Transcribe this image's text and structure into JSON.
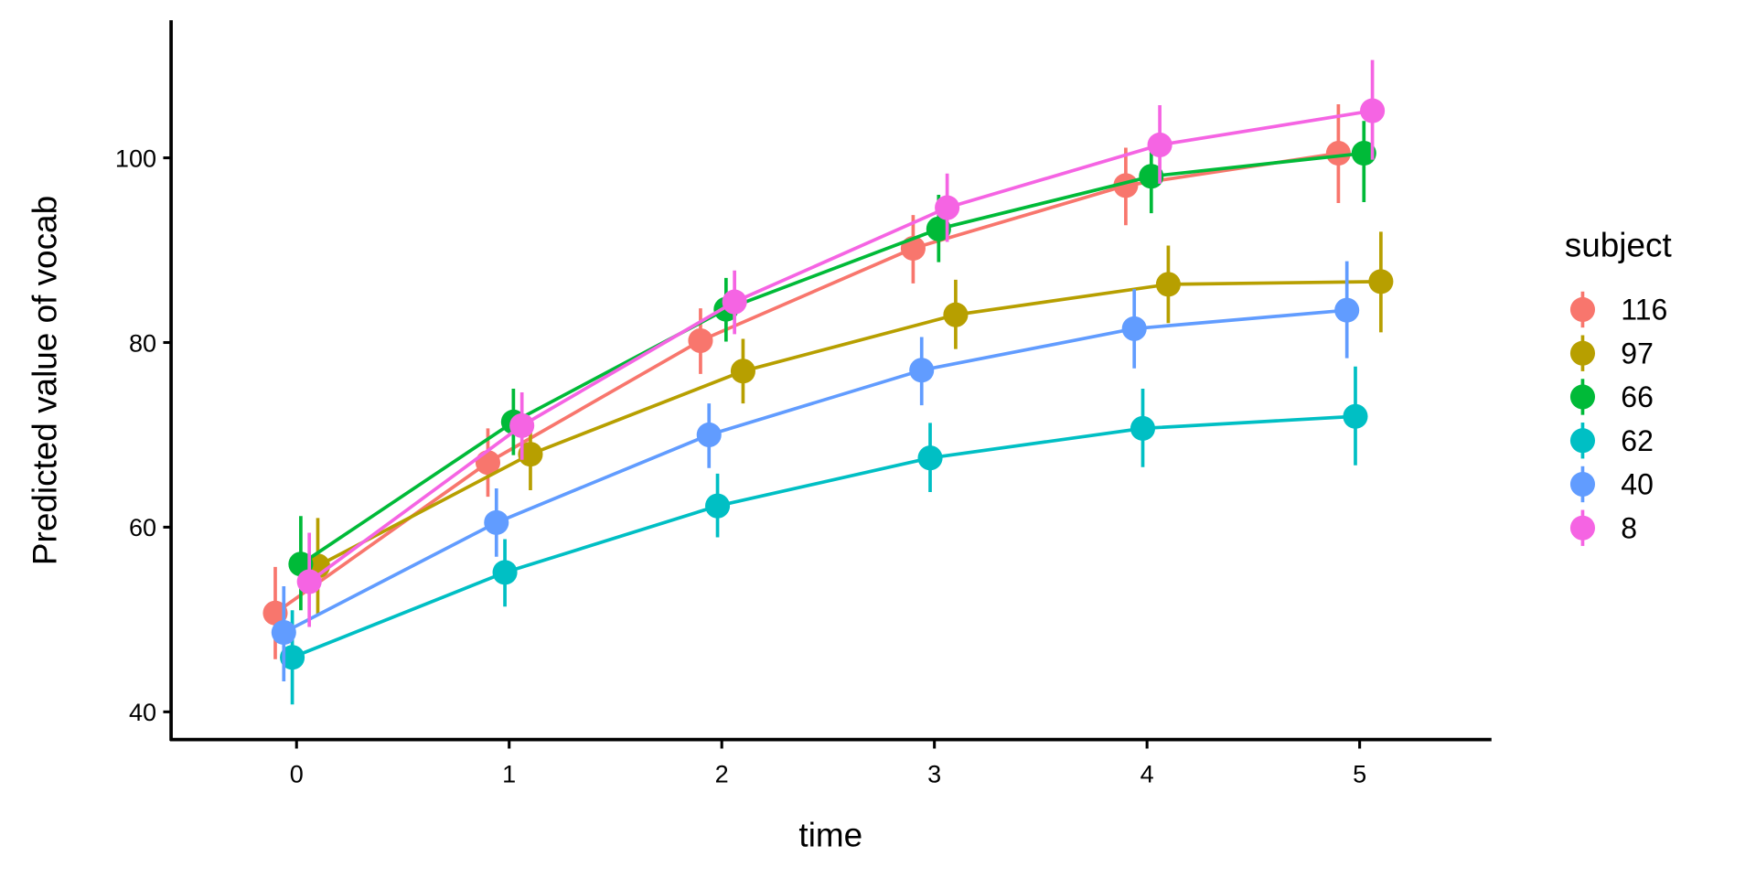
{
  "chart_data": {
    "type": "line",
    "title": "",
    "xlabel": "time",
    "ylabel": "Predicted value of vocab",
    "xlim": [
      -0.59,
      5.62
    ],
    "ylim": [
      37.0,
      114.9
    ],
    "x": [
      0,
      1,
      2,
      3,
      4,
      5
    ],
    "x_ticks": [
      "0",
      "1",
      "2",
      "3",
      "4",
      "5"
    ],
    "y_ticks": [
      40,
      60,
      80,
      100
    ],
    "y_tick_labels": [
      "40",
      "60",
      "80",
      "100"
    ],
    "grid": false,
    "legend": {
      "title": "subject",
      "placement": "right"
    },
    "series": [
      {
        "name": "116",
        "color": "#F8766D",
        "dodge": -0.1,
        "values": [
          50.7,
          67.0,
          80.2,
          90.2,
          97.0,
          100.5
        ],
        "lower": [
          45.7,
          63.3,
          76.6,
          86.4,
          92.7,
          95.1
        ],
        "upper": [
          55.7,
          70.7,
          83.7,
          93.8,
          101.1,
          105.8
        ]
      },
      {
        "name": "97",
        "color": "#B79F00",
        "dodge": 0.1,
        "values": [
          55.8,
          67.9,
          76.9,
          83.0,
          86.3,
          86.6
        ],
        "lower": [
          50.6,
          64.0,
          73.4,
          79.3,
          82.1,
          81.1
        ],
        "upper": [
          61.0,
          71.7,
          80.4,
          86.8,
          90.5,
          92.0
        ]
      },
      {
        "name": "66",
        "color": "#00BA38",
        "dodge": 0.02,
        "values": [
          56.0,
          71.4,
          83.6,
          92.3,
          98.0,
          100.5
        ],
        "lower": [
          51.0,
          67.8,
          80.1,
          88.7,
          94.0,
          95.2
        ],
        "upper": [
          61.2,
          75.0,
          87.0,
          96.0,
          101.7,
          104.0
        ]
      },
      {
        "name": "62",
        "color": "#00BFC4",
        "dodge": -0.02,
        "values": [
          45.9,
          55.1,
          62.3,
          67.5,
          70.7,
          72.0
        ],
        "lower": [
          40.8,
          51.4,
          58.9,
          63.8,
          66.5,
          66.7
        ],
        "upper": [
          51.0,
          58.7,
          65.8,
          71.3,
          75.0,
          77.4
        ]
      },
      {
        "name": "40",
        "color": "#619CFF",
        "dodge": -0.06,
        "values": [
          48.6,
          60.5,
          70.0,
          77.0,
          81.5,
          83.5
        ],
        "lower": [
          43.3,
          56.8,
          66.4,
          73.2,
          77.2,
          78.3
        ],
        "upper": [
          53.6,
          64.2,
          73.4,
          80.6,
          85.8,
          88.8
        ]
      },
      {
        "name": "8",
        "color": "#F564E3",
        "dodge": 0.06,
        "values": [
          54.1,
          71.0,
          84.4,
          94.6,
          101.4,
          105.1
        ],
        "lower": [
          49.2,
          67.3,
          80.9,
          90.9,
          97.2,
          99.8
        ],
        "upper": [
          59.4,
          74.6,
          87.8,
          98.3,
          105.7,
          110.6
        ]
      }
    ]
  }
}
